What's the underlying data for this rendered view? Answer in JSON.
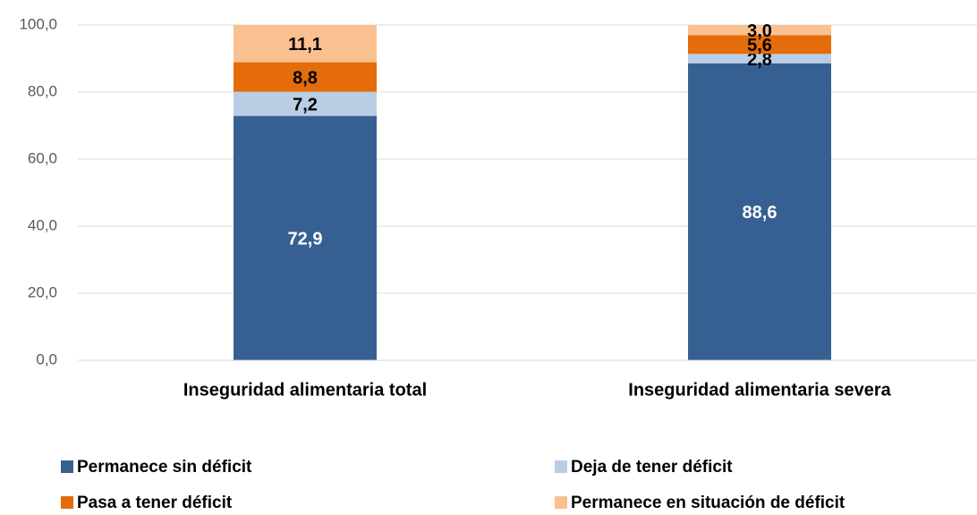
{
  "chart_data": {
    "type": "stacked_bar",
    "categories": [
      "Inseguridad alimentaria total",
      "Inseguridad alimentaria severa"
    ],
    "series": [
      {
        "name": "Permanece sin déficit",
        "color": "#376092",
        "values": [
          72.9,
          88.6
        ],
        "value_labels": [
          "72,9",
          "88,6"
        ]
      },
      {
        "name": "Deja de tener déficit",
        "color": "#b9cde5",
        "values": [
          7.2,
          2.8
        ],
        "value_labels": [
          "7,2",
          "2,8"
        ]
      },
      {
        "name": "Pasa a tener déficit",
        "color": "#e46c0a",
        "values": [
          8.8,
          5.6
        ],
        "value_labels": [
          "8,8",
          "5,6"
        ]
      },
      {
        "name": "Permanece en situación de déficit",
        "color": "#fac090",
        "values": [
          11.1,
          3.0
        ],
        "value_labels": [
          "11,1",
          "3,0"
        ]
      }
    ],
    "ylim": [
      0,
      100
    ],
    "yticks": [
      {
        "value": 0,
        "label": "0,0"
      },
      {
        "value": 20,
        "label": "20,0"
      },
      {
        "value": 40,
        "label": "40,0"
      },
      {
        "value": 60,
        "label": "60,0"
      },
      {
        "value": 80,
        "label": "80,0"
      },
      {
        "value": 100,
        "label": "100,0"
      }
    ],
    "grid": true
  }
}
